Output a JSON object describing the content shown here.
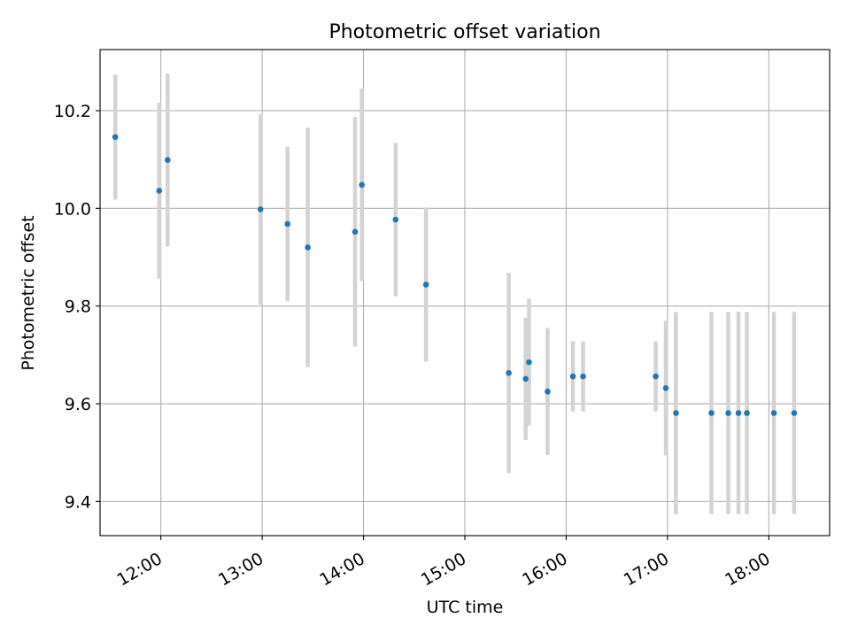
{
  "chart_data": {
    "type": "scatter",
    "title": "Photometric offset variation",
    "xlabel": "UTC time",
    "ylabel": "Photometric offset",
    "x_type": "time",
    "xlim": [
      "11:24",
      "18:36"
    ],
    "ylim": [
      9.33,
      10.325
    ],
    "grid": true,
    "legend": "none",
    "x_ticks": [
      "12:00",
      "13:00",
      "14:00",
      "15:00",
      "16:00",
      "17:00",
      "18:00"
    ],
    "y_ticks": [
      9.4,
      9.6,
      9.8,
      10.0,
      10.2
    ],
    "y_tick_labels": [
      "9.4",
      "9.6",
      "9.8",
      "10.0",
      "10.2"
    ],
    "colors": {
      "point": "#1f77b4",
      "errorbar": "#d3d3d3",
      "grid": "#b0b0b0",
      "axes": "#000000"
    },
    "series": [
      {
        "points": [
          {
            "x": "11:33",
            "y": 10.146,
            "err": 0.128
          },
          {
            "x": "11:59",
            "y": 10.036,
            "err": 0.18
          },
          {
            "x": "12:04",
            "y": 10.099,
            "err": 0.177
          },
          {
            "x": "12:59",
            "y": 9.998,
            "err": 0.195
          },
          {
            "x": "13:15",
            "y": 9.968,
            "err": 0.158
          },
          {
            "x": "13:27",
            "y": 9.92,
            "err": 0.245
          },
          {
            "x": "13:55",
            "y": 9.952,
            "err": 0.235
          },
          {
            "x": "13:59",
            "y": 10.048,
            "err": 0.197
          },
          {
            "x": "14:19",
            "y": 9.977,
            "err": 0.157
          },
          {
            "x": "14:37",
            "y": 9.844,
            "err": 0.158
          },
          {
            "x": "15:26",
            "y": 9.663,
            "err": 0.205
          },
          {
            "x": "15:36",
            "y": 9.651,
            "err": 0.125
          },
          {
            "x": "15:38",
            "y": 9.685,
            "err": 0.13
          },
          {
            "x": "15:49",
            "y": 9.625,
            "err": 0.13
          },
          {
            "x": "16:04",
            "y": 9.656,
            "err": 0.072
          },
          {
            "x": "16:10",
            "y": 9.656,
            "err": 0.072
          },
          {
            "x": "16:53",
            "y": 9.656,
            "err": 0.072
          },
          {
            "x": "16:59",
            "y": 9.632,
            "err": 0.138
          },
          {
            "x": "17:05",
            "y": 9.581,
            "err": 0.207
          },
          {
            "x": "17:26",
            "y": 9.581,
            "err": 0.207
          },
          {
            "x": "17:36",
            "y": 9.581,
            "err": 0.207
          },
          {
            "x": "17:42",
            "y": 9.581,
            "err": 0.207
          },
          {
            "x": "17:47",
            "y": 9.581,
            "err": 0.207
          },
          {
            "x": "18:03",
            "y": 9.581,
            "err": 0.207
          },
          {
            "x": "18:15",
            "y": 9.581,
            "err": 0.207
          }
        ]
      }
    ]
  }
}
